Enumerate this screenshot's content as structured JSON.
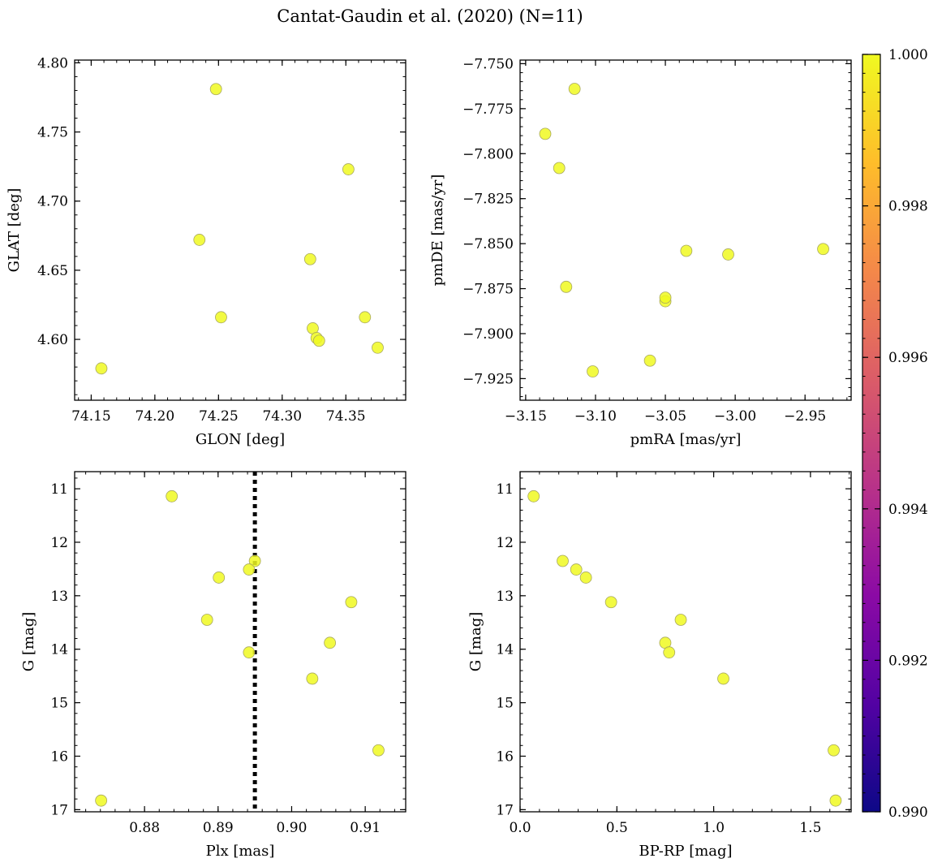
{
  "suptitle": "Cantat-Gaudin et al. (2020) (N=11)",
  "chart_data": [
    {
      "type": "scatter",
      "id": "glon-glat",
      "xlabel": "GLON [deg]",
      "ylabel": "GLAT [deg]",
      "xlim": [
        74.137,
        74.397
      ],
      "ylim": [
        4.556,
        4.802
      ],
      "xticks": [
        74.15,
        74.2,
        74.25,
        74.3,
        74.35
      ],
      "xtick_labels": [
        "74.15",
        "74.20",
        "74.25",
        "74.30",
        "74.35"
      ],
      "yticks": [
        4.6,
        4.65,
        4.7,
        4.75,
        4.8
      ],
      "ytick_labels": [
        "4.60",
        "4.65",
        "4.70",
        "4.75",
        "4.80"
      ],
      "x": [
        74.158,
        74.248,
        74.235,
        74.252,
        74.352,
        74.322,
        74.324,
        74.327,
        74.329,
        74.365,
        74.375
      ],
      "y": [
        4.579,
        4.781,
        4.672,
        4.616,
        4.723,
        4.658,
        4.608,
        4.601,
        4.599,
        4.616,
        4.594
      ]
    },
    {
      "type": "scatter",
      "id": "pmra-pmde",
      "xlabel": "pmRA [mas/yr]",
      "ylabel": "pmDE [mas/yr]",
      "xlim": [
        -3.154,
        -2.917
      ],
      "ylim": [
        -7.937,
        -7.748
      ],
      "xticks": [
        -3.15,
        -3.1,
        -3.05,
        -3.0,
        -2.95
      ],
      "xtick_labels": [
        "−3.15",
        "−3.10",
        "−3.05",
        "−3.00",
        "−2.95"
      ],
      "yticks": [
        -7.75,
        -7.775,
        -7.8,
        -7.825,
        -7.85,
        -7.875,
        -7.9,
        -7.925
      ],
      "ytick_labels": [
        "−7.750",
        "−7.775",
        "−7.800",
        "−7.825",
        "−7.850",
        "−7.875",
        "−7.900",
        "−7.925"
      ],
      "x": [
        -3.115,
        -3.136,
        -3.126,
        -3.121,
        -3.102,
        -3.061,
        -3.05,
        -3.05,
        -3.035,
        -3.005,
        -2.937
      ],
      "y": [
        -7.764,
        -7.789,
        -7.808,
        -7.874,
        -7.921,
        -7.915,
        -7.882,
        -7.88,
        -7.854,
        -7.856,
        -7.853
      ]
    },
    {
      "type": "scatter",
      "id": "plx-g",
      "xlabel": "Plx [mas]",
      "ylabel": "G [mag]",
      "xlim": [
        0.8705,
        0.9155
      ],
      "ylim": [
        17.04,
        10.68
      ],
      "y_inverted": true,
      "xticks": [
        0.88,
        0.89,
        0.9,
        0.91
      ],
      "xtick_labels": [
        "0.88",
        "0.89",
        "0.90",
        "0.91"
      ],
      "yticks": [
        11,
        12,
        13,
        14,
        15,
        16,
        17
      ],
      "ytick_labels": [
        "11",
        "12",
        "13",
        "14",
        "15",
        "16",
        "17"
      ],
      "vline": 0.895,
      "x": [
        0.8837,
        0.8741,
        0.895,
        0.8901,
        0.8885,
        0.8942,
        0.8942,
        0.9081,
        0.9052,
        0.9028,
        0.9118
      ],
      "y": [
        11.14,
        16.83,
        12.35,
        12.66,
        13.45,
        14.06,
        12.51,
        13.12,
        13.88,
        14.55,
        15.89
      ]
    },
    {
      "type": "scatter",
      "id": "bprp-g",
      "xlabel": "BP-RP [mag]",
      "ylabel": "G [mag]",
      "xlim": [
        0.0,
        1.71
      ],
      "ylim": [
        17.04,
        10.68
      ],
      "y_inverted": true,
      "xticks": [
        0.0,
        0.5,
        1.0,
        1.5
      ],
      "xtick_labels": [
        "0.0",
        "0.5",
        "1.0",
        "1.5"
      ],
      "yticks": [
        11,
        12,
        13,
        14,
        15,
        16,
        17
      ],
      "ytick_labels": [
        "11",
        "12",
        "13",
        "14",
        "15",
        "16",
        "17"
      ],
      "x": [
        0.07,
        0.22,
        0.29,
        0.34,
        0.47,
        0.75,
        0.77,
        0.83,
        1.05,
        1.62,
        1.63
      ],
      "y": [
        11.14,
        12.35,
        12.51,
        12.66,
        13.12,
        13.88,
        14.06,
        13.45,
        14.55,
        15.89,
        16.83
      ]
    }
  ],
  "colorbar": {
    "min": 0.99,
    "max": 1.0,
    "ticks": [
      0.99,
      0.992,
      0.994,
      0.996,
      0.998,
      1.0
    ],
    "tick_labels": [
      "0.990",
      "0.992",
      "0.994",
      "0.996",
      "0.998",
      "1.000"
    ],
    "colormap": "plasma",
    "stops": [
      "#0d0887",
      "#5302a3",
      "#8b0aa5",
      "#b83289",
      "#db5c68",
      "#f48849",
      "#febd2a",
      "#f0f921"
    ]
  },
  "colors": {
    "marker_fill": "#f0f921",
    "marker_edge": "#a8a860",
    "vline": "#000000"
  }
}
